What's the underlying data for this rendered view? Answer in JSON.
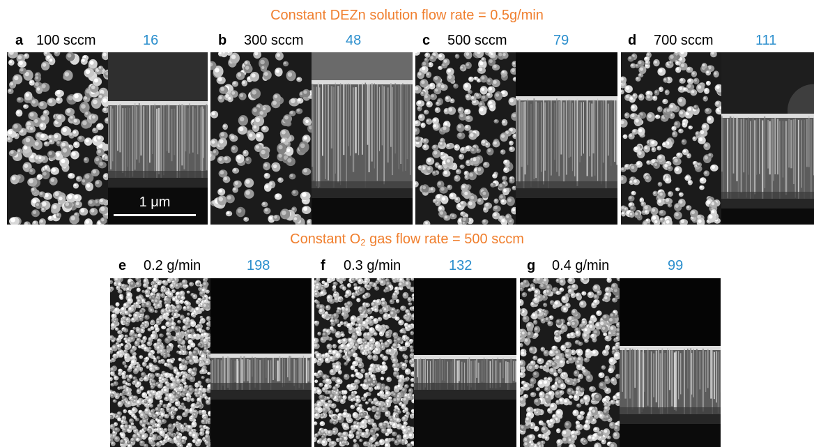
{
  "row1": {
    "title": "Constant DEZn solution flow rate = 0.5g/min",
    "panels": [
      {
        "letter": "a",
        "condition": "100 sccm",
        "count": "16"
      },
      {
        "letter": "b",
        "condition": "300 sccm",
        "count": "48"
      },
      {
        "letter": "c",
        "condition": "500 sccm",
        "count": "79"
      },
      {
        "letter": "d",
        "condition": "700 sccm",
        "count": "111"
      }
    ]
  },
  "row2": {
    "title_prefix": "Constant O",
    "title_sub": "2",
    "title_suffix": " gas flow rate = 500 sccm",
    "panels": [
      {
        "letter": "e",
        "condition": "0.2 g/min",
        "count": "198"
      },
      {
        "letter": "f",
        "condition": "0.3 g/min",
        "count": "132"
      },
      {
        "letter": "g",
        "condition": "0.4 g/min",
        "count": "99"
      }
    ]
  },
  "scale_bar": {
    "label": "1 μm"
  },
  "colors": {
    "title": "#f07f2e",
    "count": "#2a8ecd",
    "text": "#000000"
  }
}
